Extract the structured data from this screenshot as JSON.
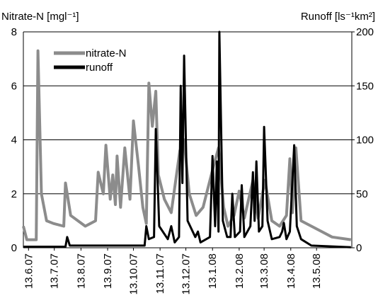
{
  "chart_data": {
    "type": "line",
    "y_label": "Nitrate-N [mgl⁻¹]",
    "y2_label": "Runoff [ls⁻¹km²]",
    "xlim": [
      "2007-06-07",
      "2008-06-23"
    ],
    "xticks": [
      {
        "value": "2007-06-13",
        "label": "13.6.07"
      },
      {
        "value": "2007-07-13",
        "label": "13.7.07"
      },
      {
        "value": "2007-08-13",
        "label": "13.8.07"
      },
      {
        "value": "2007-09-13",
        "label": "13.9.07"
      },
      {
        "value": "2007-10-13",
        "label": "13.10.07"
      },
      {
        "value": "2007-11-13",
        "label": "13.11.07"
      },
      {
        "value": "2007-12-13",
        "label": "13.12.07"
      },
      {
        "value": "2008-01-13",
        "label": "13.1.08"
      },
      {
        "value": "2008-02-13",
        "label": "13.2.08"
      },
      {
        "value": "2008-03-13",
        "label": "13.3.08"
      },
      {
        "value": "2008-04-13",
        "label": "13.4.08"
      },
      {
        "value": "2008-05-13",
        "label": "13.5.08"
      }
    ],
    "ylim": [
      0,
      8
    ],
    "yticks": [
      0,
      2,
      4,
      6,
      8
    ],
    "y2lim": [
      0,
      200
    ],
    "y2ticks": [
      0,
      50,
      100,
      150,
      200
    ],
    "grid": true,
    "legend": "top-left",
    "series": [
      {
        "name": "nitrate-N",
        "color": "#8c8c8c",
        "axis": "y",
        "x": [
          "2007-06-07",
          "2007-06-11",
          "2007-06-22",
          "2007-06-24",
          "2007-06-28",
          "2007-07-04",
          "2007-07-12",
          "2007-07-24",
          "2007-07-26",
          "2007-08-01",
          "2007-08-18",
          "2007-08-30",
          "2007-09-02",
          "2007-09-08",
          "2007-09-11",
          "2007-09-16",
          "2007-09-19",
          "2007-09-22",
          "2007-09-24",
          "2007-09-28",
          "2007-10-03",
          "2007-10-09",
          "2007-10-13",
          "2007-10-19",
          "2007-10-24",
          "2007-10-28",
          "2007-10-31",
          "2007-11-04",
          "2007-11-08",
          "2007-11-11",
          "2007-11-18",
          "2007-11-26",
          "2007-12-06",
          "2007-12-11",
          "2007-12-17",
          "2007-12-25",
          "2008-01-02",
          "2008-01-14",
          "2008-01-20",
          "2008-01-26",
          "2008-01-31",
          "2008-02-07",
          "2008-02-13",
          "2008-02-19",
          "2008-02-29",
          "2008-03-06",
          "2008-03-14",
          "2008-03-22",
          "2008-03-31",
          "2008-04-08",
          "2008-04-12",
          "2008-04-15",
          "2008-04-19",
          "2008-04-25",
          "2008-05-07",
          "2008-05-19",
          "2008-05-31",
          "2008-06-22"
        ],
        "values": [
          0.8,
          0.3,
          0.3,
          7.3,
          2.0,
          1.0,
          0.9,
          0.8,
          2.4,
          1.2,
          0.8,
          1.0,
          2.8,
          2.0,
          3.8,
          1.8,
          2.7,
          1.6,
          3.4,
          1.5,
          3.7,
          1.8,
          4.7,
          3.0,
          1.5,
          0.9,
          6.1,
          4.5,
          5.8,
          2.7,
          1.8,
          1.3,
          3.6,
          4.0,
          2.0,
          1.2,
          1.5,
          3.0,
          3.7,
          1.5,
          0.8,
          1.2,
          2.1,
          1.1,
          2.5,
          1.1,
          2.5,
          1.0,
          0.8,
          1.2,
          3.3,
          1.3,
          3.7,
          1.0,
          0.8,
          0.6,
          0.4,
          0.3
        ]
      },
      {
        "name": "runoff",
        "color": "#000000",
        "axis": "y2",
        "x": [
          "2007-06-07",
          "2007-07-26",
          "2007-07-28",
          "2007-07-31",
          "2007-10-26",
          "2007-10-28",
          "2007-10-31",
          "2007-11-06",
          "2007-11-08",
          "2007-11-12",
          "2007-11-22",
          "2007-11-26",
          "2007-11-30",
          "2007-12-05",
          "2007-12-07",
          "2007-12-09",
          "2007-12-11",
          "2007-12-15",
          "2007-12-24",
          "2007-12-27",
          "2007-12-30",
          "2008-01-10",
          "2008-01-13",
          "2008-01-16",
          "2008-01-18",
          "2008-01-20",
          "2008-01-21",
          "2008-01-25",
          "2008-01-30",
          "2008-02-03",
          "2008-02-05",
          "2008-02-08",
          "2008-02-14",
          "2008-02-16",
          "2008-02-19",
          "2008-02-26",
          "2008-02-29",
          "2008-03-02",
          "2008-03-04",
          "2008-03-07",
          "2008-03-11",
          "2008-03-13",
          "2008-03-17",
          "2008-03-22",
          "2008-03-31",
          "2008-04-03",
          "2008-04-05",
          "2008-04-08",
          "2008-04-12",
          "2008-04-17",
          "2008-04-20",
          "2008-04-25",
          "2008-05-07",
          "2008-06-22"
        ],
        "values": [
          1,
          1,
          10,
          2,
          2,
          20,
          8,
          10,
          110,
          20,
          8,
          20,
          5,
          10,
          150,
          60,
          178,
          25,
          10,
          15,
          5,
          10,
          85,
          20,
          80,
          15,
          200,
          25,
          10,
          10,
          50,
          10,
          15,
          58,
          10,
          20,
          70,
          25,
          80,
          15,
          20,
          112,
          25,
          8,
          10,
          15,
          23,
          8,
          15,
          95,
          20,
          8,
          2,
          0.5
        ]
      }
    ]
  }
}
